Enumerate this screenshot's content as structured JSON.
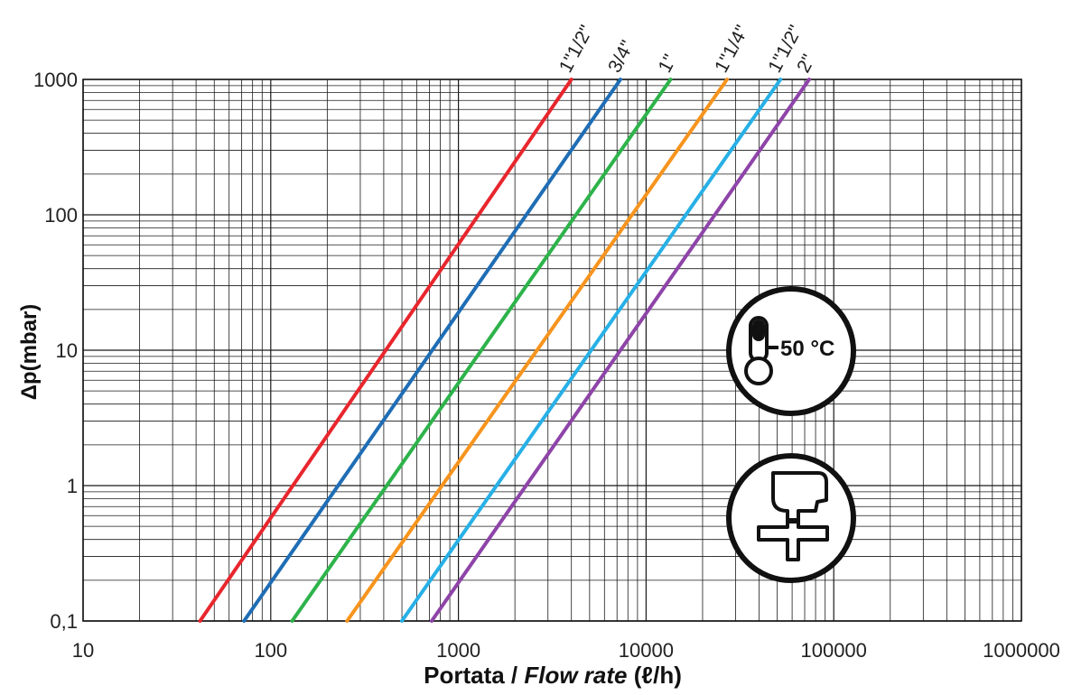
{
  "chart_data": {
    "type": "line",
    "title": "",
    "xlabel": "",
    "xlabel_parts": [
      "Portata / ",
      "Flow rate",
      " (ℓ/h)"
    ],
    "ylabel": "Δp(mbar)",
    "x_scale": "log",
    "y_scale": "log",
    "xlim": [
      10,
      1000000
    ],
    "ylim": [
      0.1,
      1000
    ],
    "grid": true,
    "x_ticks": [
      10,
      100,
      1000,
      10000,
      100000,
      1000000
    ],
    "x_tick_labels": [
      "10",
      "100",
      "1000",
      "10000",
      "100000",
      "1000000"
    ],
    "y_ticks": [
      0.1,
      1,
      10,
      100,
      1000
    ],
    "y_tick_labels": [
      "0,1",
      "1",
      "10",
      "100",
      "1000"
    ],
    "series": [
      {
        "name": "1\"1/2\"",
        "color": "#e8262d",
        "x": [
          42,
          4000
        ],
        "y": [
          0.1,
          1000
        ]
      },
      {
        "name": "3/4\"",
        "color": "#1f6db5",
        "x": [
          72,
          7300
        ],
        "y": [
          0.1,
          1000
        ]
      },
      {
        "name": "1\"",
        "color": "#2db34a",
        "x": [
          130,
          13500
        ],
        "y": [
          0.1,
          1000
        ]
      },
      {
        "name": "1\"1/4\"",
        "color": "#f7941d",
        "x": [
          255,
          27000
        ],
        "y": [
          0.1,
          1000
        ]
      },
      {
        "name": "1\"1/2\"",
        "color": "#27b0e6",
        "x": [
          500,
          52000
        ],
        "y": [
          0.1,
          1000
        ]
      },
      {
        "name": "2\"",
        "color": "#8e44a8",
        "x": [
          720,
          74000
        ],
        "y": [
          0.1,
          1000
        ]
      }
    ],
    "annotations": {
      "temperature_badge": {
        "text": "50 °C",
        "icon": "thermometer-icon"
      },
      "valve_badge": {
        "icon": "valve-icon"
      }
    }
  }
}
